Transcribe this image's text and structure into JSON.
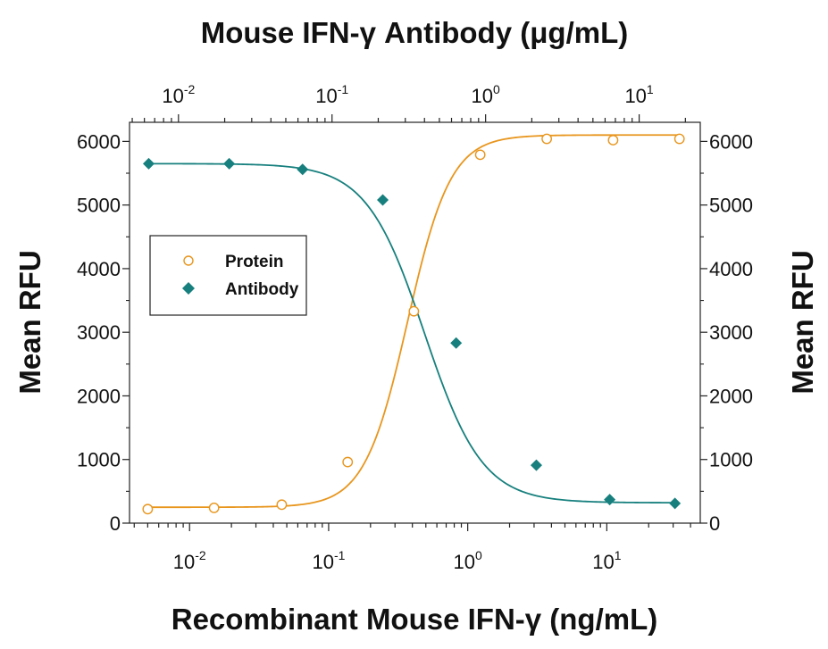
{
  "chart_data": {
    "type": "scatter",
    "title": "",
    "x_bottom": {
      "label": "Recombinant Mouse IFN-γ (ng/mL)",
      "scale": "log",
      "range": [
        0.0037,
        47
      ],
      "ticks": [
        {
          "value": 0.01,
          "base": "10",
          "exp": "-2"
        },
        {
          "value": 0.1,
          "base": "10",
          "exp": "-1"
        },
        {
          "value": 1,
          "base": "10",
          "exp": "0"
        },
        {
          "value": 10,
          "base": "10",
          "exp": "1"
        }
      ]
    },
    "x_top": {
      "label": "Mouse IFN-γ Antibody (μg/mL)",
      "scale": "log",
      "range": [
        0.0048,
        25
      ],
      "ticks": [
        {
          "value": 0.01,
          "base": "10",
          "exp": "-2"
        },
        {
          "value": 0.1,
          "base": "10",
          "exp": "-1"
        },
        {
          "value": 1,
          "base": "10",
          "exp": "0"
        },
        {
          "value": 10,
          "base": "10",
          "exp": "1"
        }
      ]
    },
    "y_left": {
      "label": "Mean RFU",
      "range": [
        0,
        6300
      ],
      "ticks": [
        0,
        1000,
        2000,
        3000,
        4000,
        5000,
        6000
      ]
    },
    "y_right": {
      "label": "Mean RFU",
      "range": [
        0,
        6300
      ],
      "ticks": [
        0,
        1000,
        2000,
        3000,
        4000,
        5000,
        6000
      ]
    },
    "grid": false,
    "legend": {
      "position": "left",
      "entries": [
        "Protein",
        "Antibody"
      ]
    },
    "series": [
      {
        "name": "Protein",
        "axis": "bottom",
        "marker": "open-circle",
        "color": "#e8961e",
        "x": [
          0.005,
          0.015,
          0.046,
          0.137,
          0.41,
          1.23,
          3.7,
          11.1,
          33.3
        ],
        "y": [
          220,
          240,
          290,
          960,
          3330,
          5790,
          6040,
          6020,
          6040
        ],
        "fit": {
          "bottom": 250,
          "top": 6100,
          "ec50": 0.37,
          "hill": 2.8
        }
      },
      {
        "name": "Antibody",
        "axis": "top",
        "marker": "filled-diamond",
        "color": "#17807e",
        "x": [
          0.0064,
          0.0214,
          0.0643,
          0.214,
          0.643,
          2.14,
          6.43,
          17.1
        ],
        "y": [
          5650,
          5650,
          5560,
          5080,
          2830,
          910,
          370,
          310
        ],
        "fit": {
          "bottom": 320,
          "top": 5650,
          "ec50": 0.4,
          "hill": 2.3
        }
      }
    ]
  }
}
